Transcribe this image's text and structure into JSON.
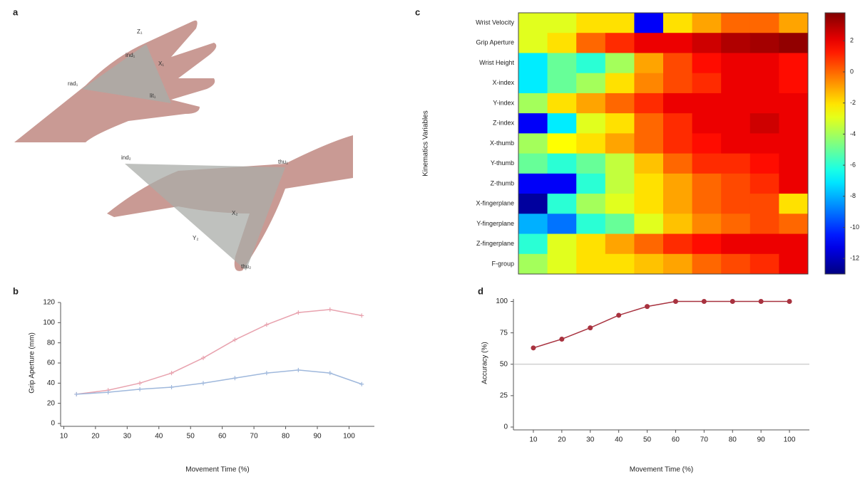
{
  "panel_labels": [
    "a",
    "b",
    "c",
    "d"
  ],
  "figure_a": {
    "labels": [
      "Z₁",
      "ind₁",
      "X₁",
      "rad₁",
      "lit₁",
      "ind₂",
      "thu₁",
      "X₂",
      "Y₂",
      "thu₂"
    ]
  },
  "chart_data": [
    {
      "type": "line",
      "xlabel": "Movement Time (%)",
      "ylabel": "Grip Aperture (mm)",
      "x": [
        14,
        24,
        34,
        44,
        54,
        64,
        74,
        84,
        94,
        104
      ],
      "series": [
        {
          "color": "#e8a2ae",
          "values": [
            29,
            33,
            40,
            50,
            65,
            83,
            98,
            110,
            113,
            107
          ]
        },
        {
          "color": "#9fb8dc",
          "values": [
            29,
            31,
            34,
            36,
            40,
            45,
            50,
            53,
            50,
            39
          ]
        }
      ],
      "marker": "plus",
      "xlim": [
        9,
        108
      ],
      "xticks": [
        10,
        20,
        30,
        40,
        50,
        60,
        70,
        80,
        90,
        100
      ],
      "ylim": [
        0,
        120
      ],
      "yticks": [
        0,
        20,
        40,
        60,
        80,
        100,
        120
      ]
    },
    {
      "type": "heatmap",
      "ylabel": "Kinematics Variables",
      "rows": [
        "Wrist Velocity",
        "Grip Aperture",
        "Wrist Height",
        "X-index",
        "Y-index",
        "Z-index",
        "X-thumb",
        "Y-thumb",
        "Z-thumb",
        "X-fingerplane",
        "Y-fingerplane",
        "Z-fingerplane",
        "F-group"
      ],
      "values": [
        [
          -3,
          -3,
          -2,
          -2,
          -11,
          -2,
          -1,
          0,
          0,
          -1
        ],
        [
          -3,
          -2,
          0,
          1,
          2,
          2,
          2.5,
          3,
          3.2,
          3.5
        ],
        [
          -7,
          -5,
          -6,
          -4,
          -1,
          0.5,
          1.5,
          2,
          2,
          1.5
        ],
        [
          -7,
          -5,
          -4,
          -2,
          -0.5,
          0.5,
          1,
          2,
          2,
          1.5
        ],
        [
          -4,
          -2,
          -1,
          0,
          1,
          2,
          2,
          2,
          2,
          2
        ],
        [
          -11,
          -7,
          -3,
          -2,
          0,
          1,
          2,
          2,
          2.5,
          2
        ],
        [
          -4,
          -2.5,
          -2,
          -1,
          0,
          1,
          1.5,
          2,
          2,
          2
        ],
        [
          -5,
          -6,
          -5,
          -3.5,
          -1.5,
          0,
          1,
          1,
          1.5,
          2
        ],
        [
          -11,
          -11,
          -6,
          -3.5,
          -2,
          -1,
          0,
          0.5,
          1,
          2
        ],
        [
          -12.5,
          -6,
          -4,
          -3,
          -2,
          -1,
          0,
          0.5,
          0.5,
          -2
        ],
        [
          -8,
          -9,
          -6,
          -5,
          -3,
          -1.5,
          -0.5,
          0,
          0.5,
          0
        ],
        [
          -6,
          -3,
          -2,
          -1,
          0,
          1,
          1.5,
          2,
          2,
          2
        ],
        [
          -4,
          -3,
          -2,
          -2,
          -1.5,
          -1,
          0,
          0.5,
          1,
          2
        ]
      ],
      "colormap": "jet",
      "zlim": [
        -13,
        3.8
      ],
      "zticks": [
        2,
        0,
        -2,
        -4,
        -6,
        -8,
        -10,
        -12
      ]
    },
    {
      "type": "line",
      "xlabel": "Movement Time (%)",
      "ylabel": "Accuracy (%)",
      "x": [
        10,
        20,
        30,
        40,
        50,
        60,
        70,
        80,
        90,
        100
      ],
      "series": [
        {
          "color": "#a8323f",
          "values": [
            63,
            70,
            79,
            89,
            96,
            100,
            100,
            100,
            100,
            100
          ]
        }
      ],
      "marker": "circle",
      "reference_line": 50,
      "xlim": [
        3,
        107
      ],
      "xticks": [
        10,
        20,
        30,
        40,
        50,
        60,
        70,
        80,
        90,
        100
      ],
      "ylim": [
        0,
        102
      ],
      "yticks": [
        0,
        25,
        50,
        75,
        100
      ]
    }
  ]
}
